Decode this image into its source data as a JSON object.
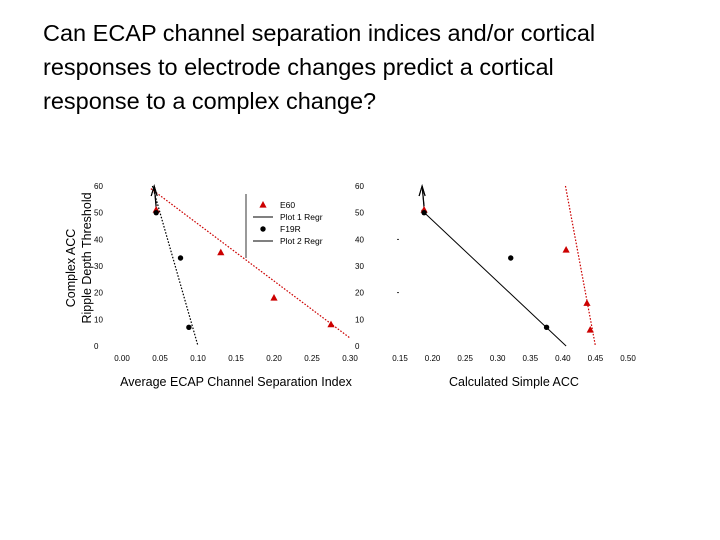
{
  "slide": {
    "title_lines": [
      "Can ECAP channel separation indices and/or cortical",
      "responses to electrode changes predict a cortical",
      "response to a complex change?"
    ]
  },
  "shared_ylabel": [
    "Complex ACC",
    "Ripple Depth Threshold"
  ],
  "chart_data": [
    {
      "type": "scatter",
      "xlabel": "Average ECAP Channel Separation Index",
      "ylabel": "",
      "xlim": [
        0,
        0.3
      ],
      "ylim": [
        0,
        60
      ],
      "xticks": [
        "0.00",
        "0.05",
        "0.10",
        "0.15",
        "0.20",
        "0.25",
        "0.30"
      ],
      "yticks": [
        "0",
        "10",
        "20",
        "30",
        "40",
        "50",
        "60"
      ],
      "grid": false,
      "legend": {
        "placement": "top-right",
        "entries": [
          "E60",
          "Plot 1 Regr",
          "F19R",
          "Plot 2 Regr"
        ]
      },
      "series": [
        {
          "name": "E60",
          "color": "#cc0000",
          "marker": "triangle",
          "points": [
            [
              0.045,
              51
            ],
            [
              0.13,
              35
            ],
            [
              0.2,
              18
            ],
            [
              0.275,
              8
            ]
          ],
          "arrow_points": [
            [
              0.045,
              51
            ]
          ]
        },
        {
          "name": "F19R",
          "color": "#000000",
          "marker": "circle",
          "points": [
            [
              0.045,
              50
            ],
            [
              0.077,
              33
            ],
            [
              0.088,
              7
            ]
          ],
          "arrow_points": [
            [
              0.045,
              50
            ]
          ]
        }
      ],
      "regressions": [
        {
          "name": "Plot 1 Regr",
          "color": "#cc0000",
          "style": "dotted",
          "from": [
            0.038,
            59
          ],
          "to": [
            0.3,
            3
          ]
        },
        {
          "name": "Plot 2 Regr",
          "color": "#000000",
          "style": "dotted",
          "from": [
            0.04,
            60
          ],
          "to": [
            0.1,
            0
          ]
        }
      ]
    },
    {
      "type": "scatter",
      "xlabel": "Calculated Simple ACC",
      "ylabel": "",
      "xlim": [
        0.15,
        0.5
      ],
      "ylim": [
        0,
        60
      ],
      "xticks": [
        "0.15",
        "0.20",
        "0.25",
        "0.30",
        "0.35",
        "0.40",
        "0.45",
        "0.50"
      ],
      "yticks": [
        "0",
        "10",
        "20",
        "30",
        "40",
        "50",
        "60"
      ],
      "grid": false,
      "series": [
        {
          "name": "E60",
          "color": "#cc0000",
          "marker": "triangle",
          "points": [
            [
              0.187,
              51
            ],
            [
              0.405,
              36
            ],
            [
              0.437,
              16
            ],
            [
              0.442,
              6
            ]
          ],
          "arrow_points": [
            [
              0.187,
              51
            ]
          ]
        },
        {
          "name": "F19R",
          "color": "#000000",
          "marker": "circle",
          "points": [
            [
              0.187,
              50
            ],
            [
              0.32,
              33
            ],
            [
              0.375,
              7
            ]
          ],
          "arrow_points": [
            [
              0.187,
              50
            ]
          ]
        }
      ],
      "regressions": [
        {
          "name": "Plot 1 Regr",
          "color": "#cc0000",
          "style": "dotted",
          "from": [
            0.404,
            60
          ],
          "to": [
            0.45,
            0
          ]
        },
        {
          "name": "Plot 2 Regr",
          "color": "#000000",
          "style": "solid",
          "from": [
            0.183,
            51
          ],
          "to": [
            0.405,
            0
          ]
        }
      ]
    }
  ]
}
